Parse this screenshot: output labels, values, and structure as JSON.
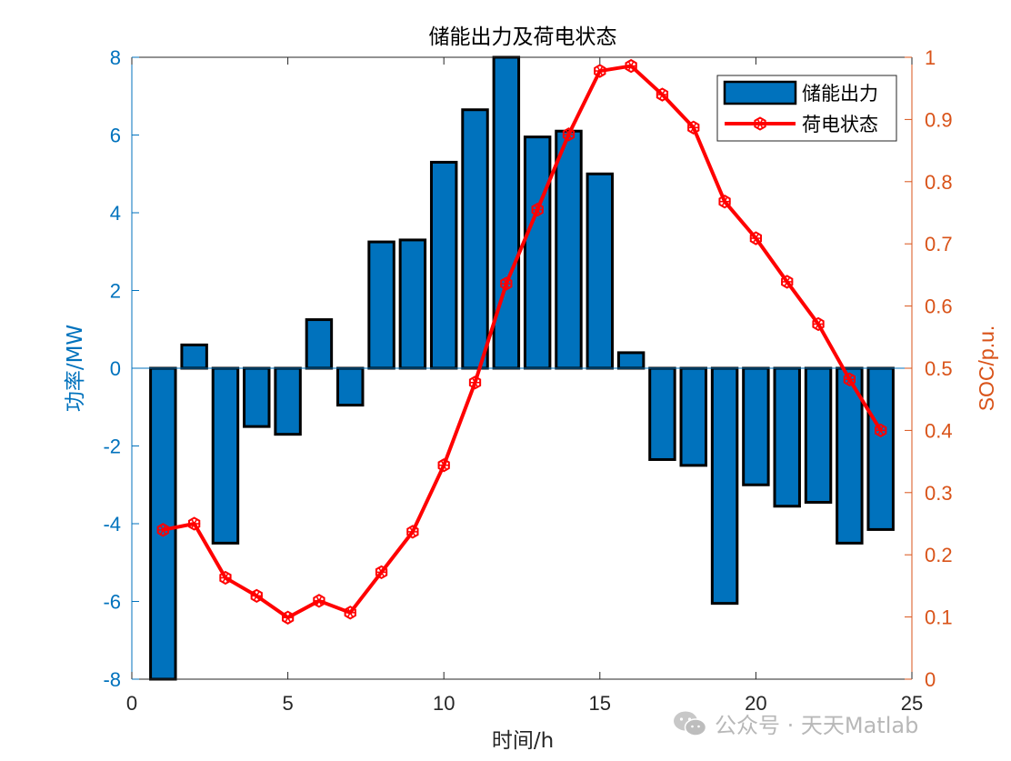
{
  "chart_data": {
    "type": "bar",
    "title": "储能出力及荷电状态",
    "xlabel": "时间/h",
    "ylabel_left": "功率/MW",
    "ylabel_right": "SOC/p.u.",
    "xlim": [
      0,
      25
    ],
    "ylim_left": [
      -8,
      8
    ],
    "ylim_right": [
      0,
      1
    ],
    "xticks": [
      "0",
      "5",
      "10",
      "15",
      "20",
      "25"
    ],
    "yticks_left": [
      "-8",
      "-6",
      "-4",
      "-2",
      "0",
      "2",
      "4",
      "6",
      "8"
    ],
    "yticks_right": [
      "0",
      "0.1",
      "0.2",
      "0.3",
      "0.4",
      "0.5",
      "0.6",
      "0.7",
      "0.8",
      "0.9",
      "1"
    ],
    "grid": false,
    "legend_position": "top-right",
    "colors": {
      "left_axis": "#0072BD",
      "right_axis": "#D95319",
      "bar_fill": "#0072BD",
      "bar_edge": "#000000",
      "line": "#FF0000"
    },
    "x": [
      1,
      2,
      3,
      4,
      5,
      6,
      7,
      8,
      9,
      10,
      11,
      12,
      13,
      14,
      15,
      16,
      17,
      18,
      19,
      20,
      21,
      22,
      23,
      24
    ],
    "series": [
      {
        "name": "储能出力",
        "type": "bar",
        "axis": "left",
        "values": [
          -8.0,
          0.6,
          -4.5,
          -1.5,
          -1.7,
          1.25,
          -0.95,
          3.25,
          3.3,
          5.3,
          6.65,
          8.0,
          5.95,
          6.1,
          5.0,
          0.4,
          -2.35,
          -2.5,
          -6.05,
          -3.0,
          -3.55,
          -3.45,
          -4.5,
          -4.15
        ]
      },
      {
        "name": "荷电状态",
        "type": "line",
        "axis": "right",
        "values": [
          0.24,
          0.25,
          0.163,
          0.134,
          0.099,
          0.126,
          0.107,
          0.172,
          0.237,
          0.344,
          0.477,
          0.636,
          0.755,
          0.876,
          0.978,
          0.986,
          0.94,
          0.887,
          0.768,
          0.709,
          0.639,
          0.571,
          0.482,
          0.4
        ]
      }
    ]
  },
  "watermark": {
    "text": "公众号 · 天天Matlab",
    "icon": "wechat-icon"
  }
}
